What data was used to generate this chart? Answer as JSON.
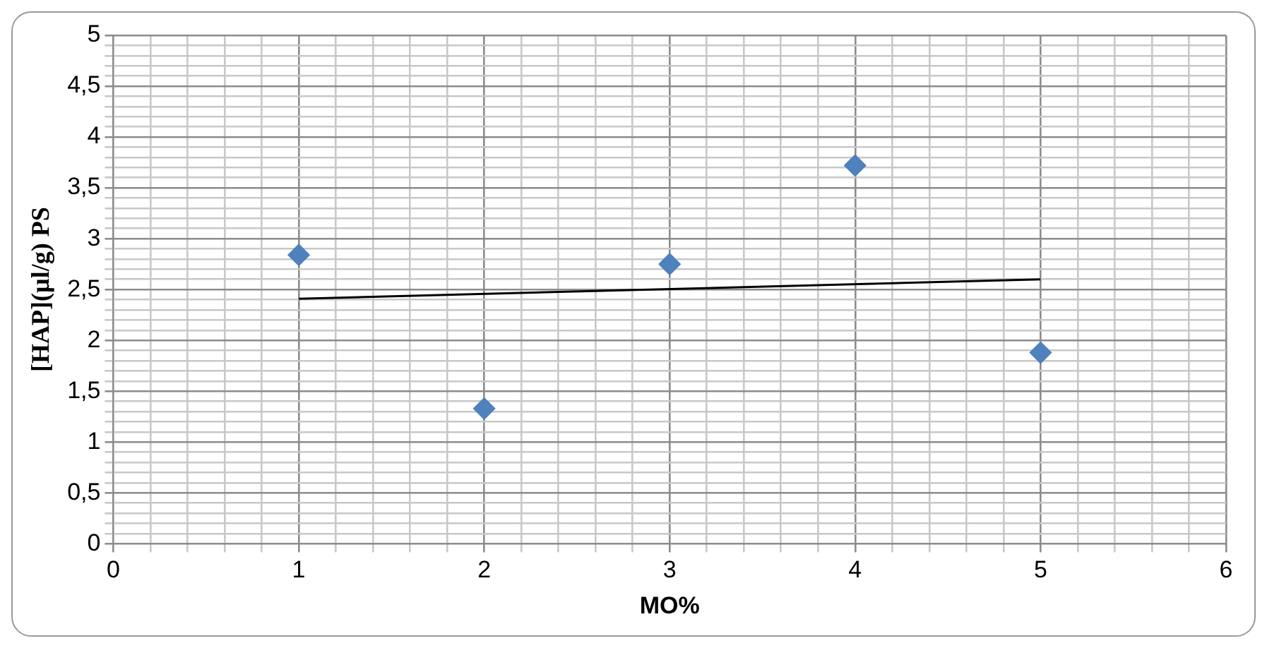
{
  "chart_data": {
    "type": "scatter",
    "xlabel": "MO%",
    "ylabel": "[HAP](µl/g) PS",
    "marker": "diamond",
    "grid": true,
    "legend": false,
    "xlim": [
      0,
      6
    ],
    "ylim": [
      0,
      5
    ],
    "xticks": [
      0,
      {
        "value": 0.2,
        "label": null
      },
      {
        "value": 0.4,
        "label": null
      },
      {
        "value": 0.6,
        "label": null
      },
      {
        "value": 0.8,
        "label": null
      },
      1,
      {
        "value": 1.2,
        "label": null
      },
      {
        "value": 1.4,
        "label": null
      },
      {
        "value": 1.6,
        "label": null
      },
      {
        "value": 1.8,
        "label": null
      },
      2,
      {
        "value": 2.2,
        "label": null
      },
      {
        "value": 2.4,
        "label": null
      },
      {
        "value": 2.6,
        "label": null
      },
      {
        "value": 2.8,
        "label": null
      },
      3,
      {
        "value": 3.2,
        "label": null
      },
      {
        "value": 3.4,
        "label": null
      },
      {
        "value": 3.6,
        "label": null
      },
      {
        "value": 3.8,
        "label": null
      },
      4,
      {
        "value": 4.2,
        "label": null
      },
      {
        "value": 4.4,
        "label": null
      },
      {
        "value": 4.6,
        "label": null
      },
      {
        "value": 4.8,
        "label": null
      },
      5,
      {
        "value": 5.2,
        "label": null
      },
      {
        "value": 5.4,
        "label": null
      },
      {
        "value": 5.6,
        "label": null
      },
      {
        "value": 5.8,
        "label": null
      },
      6
    ],
    "yticks": [
      0,
      {
        "value": 0.1,
        "label": null
      },
      {
        "value": 0.2,
        "label": null
      },
      {
        "value": 0.3,
        "label": null
      },
      {
        "value": 0.4,
        "label": null
      },
      {
        "value": 0.5,
        "label": "0,5"
      },
      {
        "value": 0.6,
        "label": null
      },
      {
        "value": 0.7,
        "label": null
      },
      {
        "value": 0.8,
        "label": null
      },
      {
        "value": 0.9,
        "label": null
      },
      1,
      {
        "value": 1.1,
        "label": null
      },
      {
        "value": 1.2,
        "label": null
      },
      {
        "value": 1.3,
        "label": null
      },
      {
        "value": 1.4,
        "label": null
      },
      {
        "value": 1.5,
        "label": "1,5"
      },
      {
        "value": 1.6,
        "label": null
      },
      {
        "value": 1.7,
        "label": null
      },
      {
        "value": 1.8,
        "label": null
      },
      {
        "value": 1.9,
        "label": null
      },
      2,
      {
        "value": 2.1,
        "label": null
      },
      {
        "value": 2.2,
        "label": null
      },
      {
        "value": 2.3,
        "label": null
      },
      {
        "value": 2.4,
        "label": null
      },
      {
        "value": 2.5,
        "label": "2,5"
      },
      {
        "value": 2.6,
        "label": null
      },
      {
        "value": 2.7,
        "label": null
      },
      {
        "value": 2.8,
        "label": null
      },
      {
        "value": 2.9,
        "label": null
      },
      3,
      {
        "value": 3.1,
        "label": null
      },
      {
        "value": 3.2,
        "label": null
      },
      {
        "value": 3.3,
        "label": null
      },
      {
        "value": 3.4,
        "label": null
      },
      {
        "value": 3.5,
        "label": "3,5"
      },
      {
        "value": 3.6,
        "label": null
      },
      {
        "value": 3.7,
        "label": null
      },
      {
        "value": 3.8,
        "label": null
      },
      {
        "value": 3.9,
        "label": null
      },
      4,
      {
        "value": 4.1,
        "label": null
      },
      {
        "value": 4.2,
        "label": null
      },
      {
        "value": 4.3,
        "label": null
      },
      {
        "value": 4.4,
        "label": null
      },
      {
        "value": 4.5,
        "label": "4,5"
      },
      {
        "value": 4.6,
        "label": null
      },
      {
        "value": 4.7,
        "label": null
      },
      {
        "value": 4.8,
        "label": null
      },
      {
        "value": 4.9,
        "label": null
      },
      5
    ],
    "series": [
      {
        "color": "#4f81bd",
        "x": [
          1,
          2,
          3,
          4,
          5
        ],
        "values": [
          2.84,
          1.33,
          2.75,
          3.72,
          1.88
        ]
      },
      {
        "type": "line",
        "color": "#000000",
        "marker": "none",
        "line_style": "solid",
        "x": [
          1,
          5
        ],
        "values": [
          2.41,
          2.6
        ]
      }
    ]
  }
}
